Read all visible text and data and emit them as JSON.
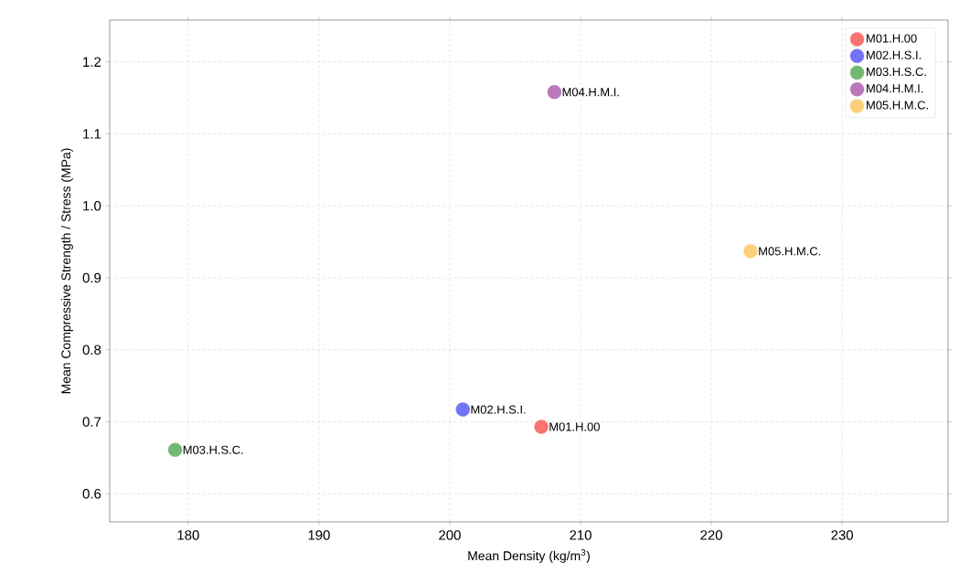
{
  "chart_data": {
    "type": "scatter",
    "xlabel": "Mean Density (kg/m$^{3}$)",
    "ylabel": "Mean Compressive Strength / Stress (MPa)",
    "xlim": [
      174,
      238.1
    ],
    "ylim": [
      0.561,
      1.258
    ],
    "xticks": [
      180,
      190,
      200,
      210,
      220,
      230
    ],
    "yticks": [
      0.6,
      0.7,
      0.8,
      0.9,
      {
        "value": 1.0,
        "label": "1.0"
      },
      1.1,
      1.2
    ],
    "grid": true,
    "legend": "top right",
    "marker": "circle",
    "series": [
      {
        "name": "M01.H.00",
        "color": "#fa7373",
        "x": [
          207
        ],
        "values": [
          0.693
        ]
      },
      {
        "name": "M02.H.S.I.",
        "color": "#7373f5",
        "x": [
          201
        ],
        "values": [
          0.717
        ]
      },
      {
        "name": "M03.H.S.C.",
        "color": "#72b872",
        "x": [
          179
        ],
        "values": [
          0.661
        ]
      },
      {
        "name": "M04.H.M.I.",
        "color": "#bb77bb",
        "x": [
          208
        ],
        "values": [
          1.158
        ]
      },
      {
        "name": "M05.H.M.C.",
        "color": "#fdcf7a",
        "x": [
          223
        ],
        "values": [
          0.937
        ]
      }
    ]
  }
}
